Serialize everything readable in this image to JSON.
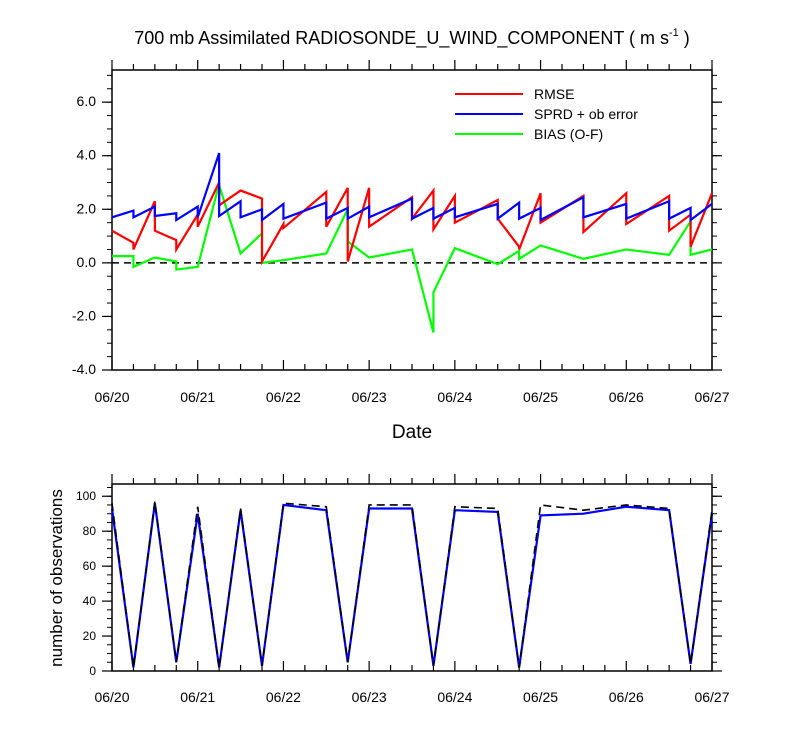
{
  "chart_data": [
    {
      "type": "line",
      "title": "700 mb Assimilated RADIOSONDE_U_WIND_COMPONENT ( m s",
      "title_sup": "-1",
      "title_tail": " )",
      "xlabel": "Date",
      "ylabel": "",
      "x_unit": "days since 06/20 00Z",
      "xlim": [
        0,
        7
      ],
      "ylim": [
        -4,
        7.2
      ],
      "ytick_values": [
        -4,
        -2,
        0,
        2,
        4,
        6
      ],
      "ytick_labels": [
        "-4.0",
        "-2.0",
        "0.0",
        "2.0",
        "4.0",
        "6.0"
      ],
      "xtick_labels": [
        "06/20",
        "06/21",
        "06/22",
        "06/23",
        "06/24",
        "06/25",
        "06/26",
        "06/27"
      ],
      "zero_line": "dashed",
      "grid": false,
      "legend_position": "top-right",
      "series": [
        {
          "name": "RMSE",
          "color": "#ff0000",
          "x": [
            0,
            0.25,
            0.25,
            0.5,
            0.5,
            0.75,
            0.75,
            1.0,
            1.0,
            1.25,
            1.25,
            1.5,
            1.75,
            1.75,
            2.0,
            2.0,
            2.5,
            2.5,
            2.75,
            2.75,
            3.0,
            3.0,
            3.5,
            3.5,
            3.75,
            3.75,
            4.0,
            4.0,
            4.5,
            4.5,
            4.75,
            4.75,
            5.0,
            5.0,
            5.5,
            5.5,
            6.0,
            6.0,
            6.5,
            6.5,
            6.75,
            6.75,
            7.0
          ],
          "y": [
            1.2,
            0.75,
            0.5,
            2.3,
            1.2,
            0.85,
            0.5,
            1.8,
            1.35,
            3.0,
            2.15,
            2.7,
            2.4,
            0.05,
            1.45,
            1.3,
            2.65,
            1.35,
            2.8,
            0.05,
            2.8,
            1.35,
            2.45,
            1.65,
            2.7,
            1.25,
            2.5,
            1.5,
            2.35,
            1.65,
            0.6,
            0.5,
            2.6,
            1.5,
            2.5,
            1.15,
            2.6,
            1.45,
            2.5,
            1.2,
            1.8,
            0.6,
            2.6
          ]
        },
        {
          "name": "SPRD + ob error",
          "color": "#0000ff",
          "x": [
            0,
            0.25,
            0.25,
            0.5,
            0.5,
            0.75,
            0.75,
            1.0,
            1.0,
            1.25,
            1.25,
            1.5,
            1.5,
            1.75,
            1.75,
            2.0,
            2.0,
            2.5,
            2.5,
            2.75,
            2.75,
            3.0,
            3.0,
            3.5,
            3.5,
            3.75,
            3.75,
            4.0,
            4.0,
            4.5,
            4.5,
            4.75,
            4.75,
            5.0,
            5.0,
            5.5,
            5.5,
            6.0,
            6.0,
            6.5,
            6.5,
            6.75,
            6.75,
            7.0
          ],
          "y": [
            1.7,
            1.95,
            1.7,
            2.1,
            1.75,
            1.85,
            1.6,
            2.1,
            1.7,
            4.1,
            1.75,
            2.3,
            1.7,
            2.0,
            1.6,
            2.2,
            1.65,
            2.25,
            1.65,
            2.05,
            1.65,
            2.1,
            1.7,
            2.4,
            1.65,
            2.05,
            1.65,
            2.05,
            1.7,
            2.2,
            1.65,
            2.25,
            1.65,
            2.05,
            1.6,
            2.45,
            1.7,
            2.2,
            1.65,
            2.3,
            1.65,
            2.05,
            1.6,
            2.2
          ]
        },
        {
          "name": "BIAS (O-F)",
          "color": "#00ff00",
          "x": [
            0,
            0.25,
            0.25,
            0.5,
            0.5,
            0.75,
            0.75,
            1.0,
            1.0,
            1.25,
            1.25,
            1.5,
            1.75,
            1.75,
            2.0,
            2.0,
            2.5,
            2.5,
            2.75,
            2.75,
            3.0,
            3.0,
            3.5,
            3.5,
            3.75,
            3.75,
            4.0,
            4.0,
            4.5,
            4.5,
            4.75,
            4.75,
            5.0,
            5.0,
            5.5,
            5.5,
            6.0,
            6.0,
            6.5,
            6.5,
            6.75,
            6.75,
            7.0
          ],
          "y": [
            0.25,
            0.25,
            -0.15,
            0.2,
            0.2,
            0.05,
            -0.25,
            -0.15,
            -0.15,
            2.95,
            2.9,
            0.35,
            1.1,
            0.0,
            0.1,
            0.1,
            0.35,
            0.35,
            2.0,
            0.8,
            0.2,
            0.2,
            0.5,
            0.5,
            -2.6,
            -1.1,
            0.55,
            0.55,
            -0.05,
            -0.05,
            0.45,
            0.15,
            0.65,
            0.65,
            0.15,
            0.15,
            0.5,
            0.5,
            0.3,
            0.3,
            1.55,
            0.3,
            0.5
          ]
        }
      ]
    },
    {
      "type": "line",
      "title": "",
      "xlabel": "",
      "ylabel": "number of observations",
      "x_unit": "days since 06/20 00Z",
      "xlim": [
        0,
        7
      ],
      "ylim": [
        0,
        107
      ],
      "ytick_values": [
        0,
        20,
        40,
        60,
        80,
        100
      ],
      "ytick_labels": [
        "0",
        "20",
        "40",
        "60",
        "80",
        "100"
      ],
      "xtick_labels": [
        "06/20",
        "06/21",
        "06/22",
        "06/23",
        "06/24",
        "06/25",
        "06/26",
        "06/27"
      ],
      "grid": false,
      "series": [
        {
          "name": "",
          "color": "#0000ff",
          "style": "solid",
          "x": [
            0,
            0.25,
            0.5,
            0.75,
            1.0,
            1.25,
            1.5,
            1.75,
            2.0,
            2.5,
            2.75,
            3.0,
            3.5,
            3.75,
            4.0,
            4.5,
            4.75,
            5.0,
            5.5,
            6.0,
            6.5,
            6.75,
            7.0
          ],
          "y": [
            93,
            2,
            96,
            5,
            90,
            2,
            92,
            3,
            95,
            92,
            5,
            93,
            93,
            3,
            92,
            91,
            2,
            89,
            90,
            94,
            92,
            4,
            90
          ]
        },
        {
          "name": "",
          "color": "#000000",
          "style": "dashed",
          "x": [
            0,
            0.25,
            0.5,
            0.75,
            1.0,
            1.25,
            1.5,
            1.75,
            2.0,
            2.5,
            2.75,
            3.0,
            3.5,
            3.75,
            4.0,
            4.5,
            4.75,
            5.0,
            5.5,
            6.0,
            6.5,
            6.75,
            7.0
          ],
          "y": [
            96,
            2,
            97,
            5,
            94,
            2,
            93,
            3,
            96,
            94,
            5,
            95,
            95,
            3,
            94,
            93,
            2,
            95,
            92,
            95,
            93,
            4,
            92
          ]
        }
      ]
    }
  ]
}
